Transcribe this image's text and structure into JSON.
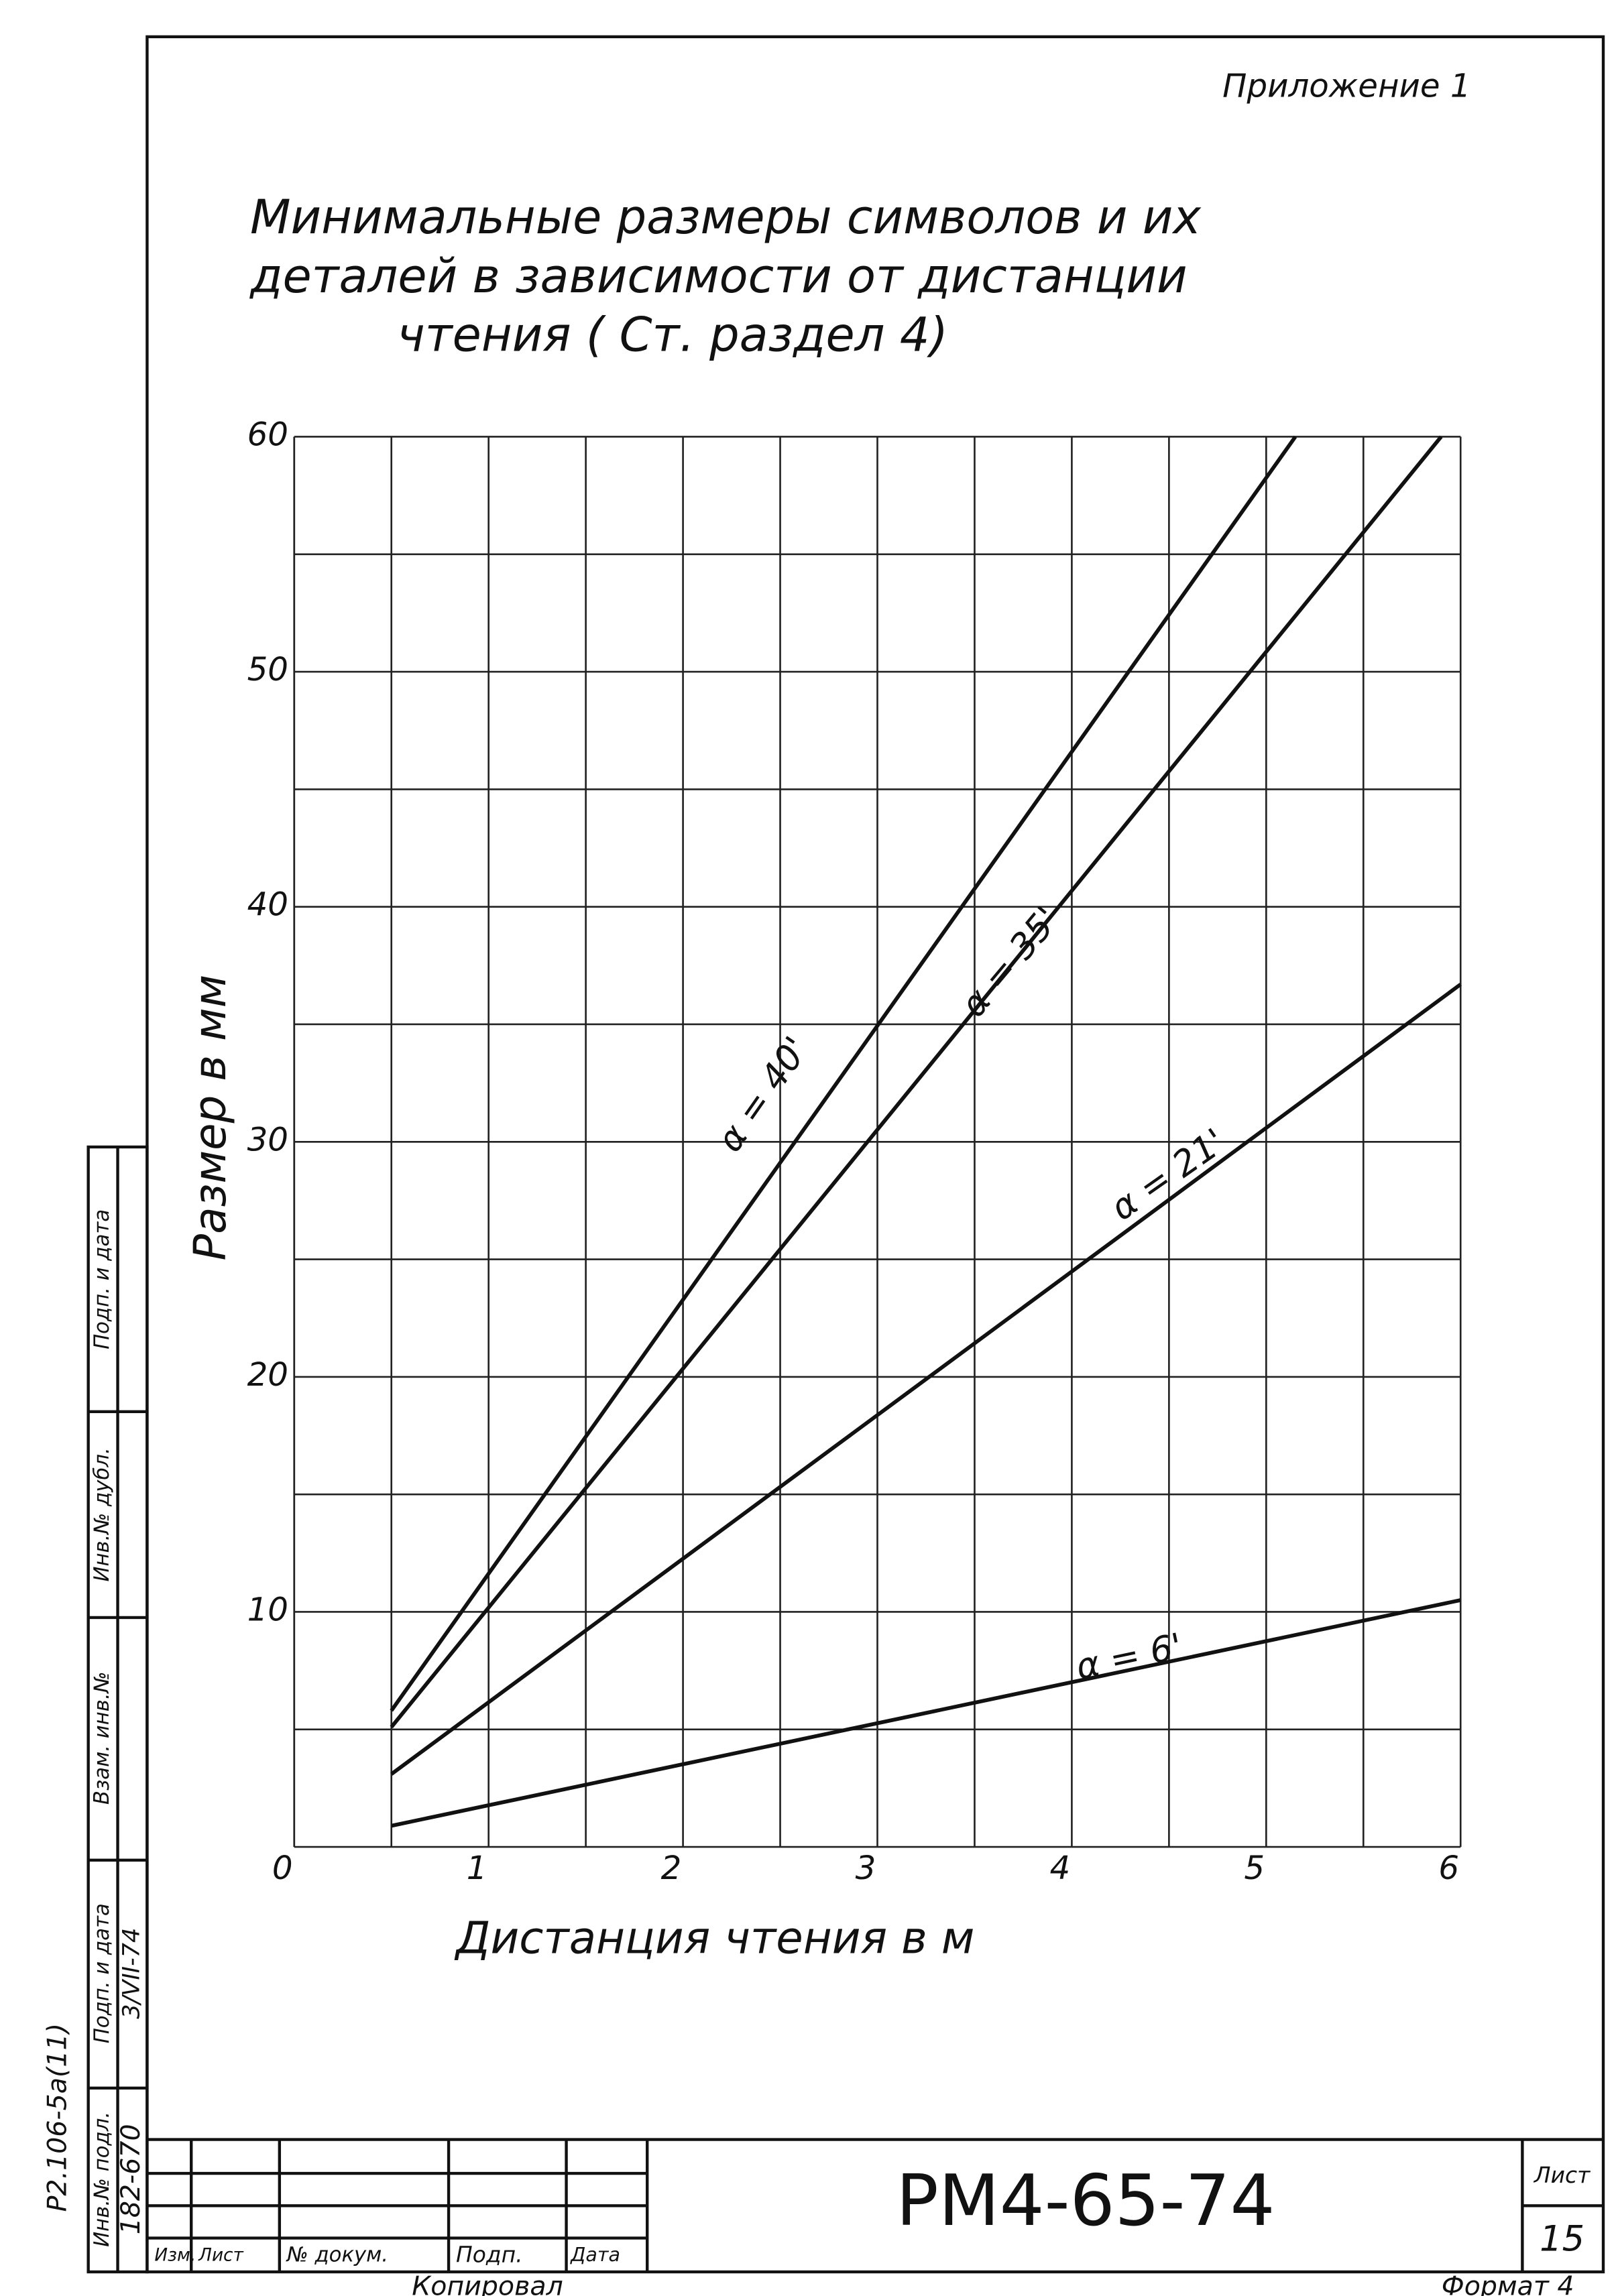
{
  "header": {
    "appendix": "Приложение 1"
  },
  "chart_data": {
    "type": "line",
    "title": [
      "Минимальные размеры символов и их",
      "деталей в зависимости от дистанции",
      "чтения   ( Ст. раздел 4)"
    ],
    "x_label": "Дистанция чтения  в  м",
    "y_label": "Размер  в  мм",
    "xlim": [
      0,
      6
    ],
    "ylim": [
      0,
      60
    ],
    "xticks": [
      0,
      1,
      2,
      3,
      4,
      5,
      6
    ],
    "yticks": [
      10,
      20,
      30,
      40,
      50,
      60
    ],
    "x_minor_ticks": [
      0.5,
      1.5,
      2.5,
      3.5,
      4.5,
      5.5
    ],
    "y_minor_ticks": [
      5,
      15,
      25,
      35,
      45,
      55
    ],
    "grid": true,
    "series": [
      {
        "name": "α = 40'",
        "color": "#111111",
        "x": [
          0.5,
          5.15
        ],
        "values": [
          5.8,
          60
        ]
      },
      {
        "name": "α = 35'",
        "color": "#111111",
        "x": [
          0.5,
          5.9
        ],
        "values": [
          5.1,
          60
        ]
      },
      {
        "name": "α = 21'",
        "color": "#111111",
        "x": [
          0.5,
          6
        ],
        "values": [
          3.1,
          36.7
        ]
      },
      {
        "name": "α = 6'",
        "color": "#111111",
        "x": [
          0.5,
          6
        ],
        "values": [
          0.9,
          10.5
        ]
      }
    ]
  },
  "stamp": {
    "code": "РМ4-65-74",
    "sheet_label": "Лист",
    "sheet": "15",
    "columns": [
      "Изм.",
      "Лист",
      "№ докум.",
      "Подп.",
      "Дата"
    ],
    "copied": "Копировал",
    "format": "Формат 4"
  },
  "side": {
    "doc": "Р2.106-5а(11)",
    "labels": [
      "Инв.№ подл.",
      "Подп. и дата",
      "Взам. инв.№",
      "Инв.№ дубл.",
      "Подп. и дата"
    ],
    "values": [
      "182-670",
      "3/VII-74"
    ]
  }
}
